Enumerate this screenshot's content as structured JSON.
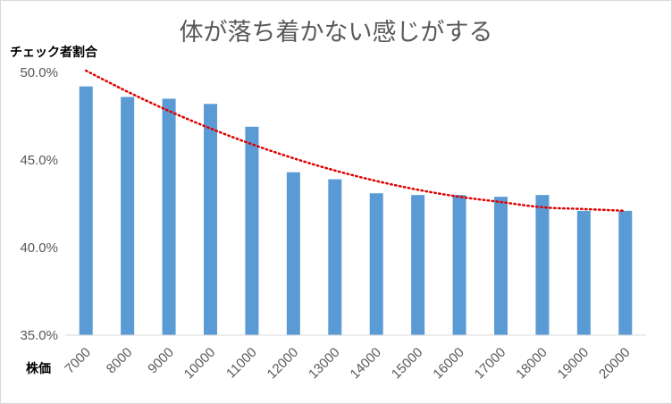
{
  "chart_data": {
    "type": "bar",
    "title": "体が落ち着かない感じがする",
    "xlabel": "株価",
    "ylabel": "チェック者割合",
    "categories": [
      "7000",
      "8000",
      "9000",
      "10000",
      "11000",
      "12000",
      "13000",
      "14000",
      "15000",
      "16000",
      "17000",
      "18000",
      "19000",
      "20000"
    ],
    "values": [
      49.2,
      48.6,
      48.5,
      48.2,
      46.9,
      44.3,
      43.9,
      43.1,
      43.0,
      43.0,
      42.9,
      43.0,
      42.1,
      42.1
    ],
    "trendline": {
      "type": "polynomial",
      "values": [
        50.1,
        48.9,
        47.8,
        46.8,
        45.9,
        45.1,
        44.4,
        43.8,
        43.3,
        42.9,
        42.6,
        42.3,
        42.2,
        42.1
      ]
    },
    "ylim": [
      35,
      50
    ],
    "yticks": [
      "35.0%",
      "40.0%",
      "45.0%",
      "50.0%"
    ],
    "grid": false,
    "legend": "none",
    "colors": {
      "bar": "#5b9bd5",
      "trendline": "#e00000",
      "axis": "#d9d9d9"
    }
  }
}
